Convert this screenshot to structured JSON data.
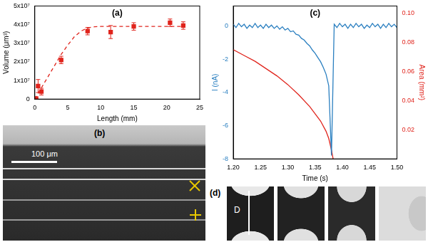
{
  "chart_data": [
    {
      "type": "scatter",
      "title": "(a)",
      "x_label": "Length (mm)",
      "y_label": "Volume (μm³)",
      "xlim": [
        0,
        25
      ],
      "xticks": [
        0,
        5,
        10,
        15,
        20,
        25
      ],
      "ylim": [
        0,
        50000000
      ],
      "yticks": [
        0,
        {
          "value": 10000000,
          "label": "1x10⁷"
        },
        {
          "value": 20000000,
          "label": "2x10⁷"
        },
        {
          "value": 30000000,
          "label": "3x10⁷"
        },
        {
          "value": 40000000,
          "label": "4x10⁷"
        },
        {
          "value": 50000000,
          "label": "5x10⁷"
        }
      ],
      "grid": false,
      "series": [
        {
          "color": "#e0241c",
          "marker": "square",
          "line_style": "none",
          "x": [
            0.2,
            0.5,
            1,
            4,
            8,
            11.5,
            15,
            20.5,
            22.5
          ],
          "values": [
            300000,
            7000000,
            4000000,
            21000000,
            36500000,
            36000000,
            39000000,
            41000000,
            39500000
          ],
          "errors": [
            300000,
            3500000,
            1800000,
            2000000,
            2000000,
            3500000,
            2000000,
            2000000,
            2000000
          ]
        },
        {
          "color": "#e0241c",
          "marker": "none",
          "line_style": "dashed",
          "x": [
            0,
            1,
            2,
            3,
            4,
            5,
            6,
            7,
            8,
            9,
            10,
            12,
            15,
            18,
            20,
            22.5
          ],
          "values": [
            0,
            6000000,
            12000000,
            18000000,
            24000000,
            29000000,
            33500000,
            36500000,
            38200000,
            38800000,
            39000000,
            39000000,
            39000000,
            39000000,
            39000000,
            39000000
          ]
        }
      ]
    },
    {
      "type": "line",
      "title": "(c)",
      "x_label": "Time (s)",
      "y_label": "I (nA)",
      "y2_label": "Area (mm²)",
      "xlim": [
        1.2,
        1.5
      ],
      "xticks": [
        {
          "value": 1.2,
          "label": "1.20"
        },
        1.25,
        {
          "value": 1.3,
          "label": "1.30"
        },
        1.35,
        {
          "value": 1.4,
          "label": "1.40"
        },
        1.45,
        {
          "value": 1.5,
          "label": "1.50"
        }
      ],
      "ylim": [
        -8,
        1.2
      ],
      "yticks": [
        -8,
        -6,
        -4,
        -2,
        0
      ],
      "y2lim": [
        0,
        0.105
      ],
      "y2ticks": [
        0.02,
        0.04,
        0.06,
        0.08,
        {
          "value": 0.1,
          "label": "0.10"
        }
      ],
      "grid": false,
      "series": [
        {
          "color": "#2a7fc0",
          "marker": "none",
          "line_style": "solid",
          "x": [
            1.2,
            1.205,
            1.21,
            1.215,
            1.22,
            1.225,
            1.23,
            1.235,
            1.24,
            1.245,
            1.25,
            1.255,
            1.26,
            1.265,
            1.27,
            1.275,
            1.28,
            1.285,
            1.29,
            1.295,
            1.3,
            1.305,
            1.31,
            1.315,
            1.32,
            1.325,
            1.33,
            1.335,
            1.34,
            1.345,
            1.35,
            1.355,
            1.36,
            1.365,
            1.37,
            1.375,
            1.38,
            1.385,
            1.39,
            1.395,
            1.4,
            1.405,
            1.41,
            1.415,
            1.42,
            1.425,
            1.43,
            1.435,
            1.44,
            1.445,
            1.45,
            1.455,
            1.46,
            1.465,
            1.47,
            1.475,
            1.48,
            1.485,
            1.49,
            1.495,
            1.5
          ],
          "values": [
            0.1,
            -0.1,
            0.15,
            -0.05,
            0.1,
            -0.15,
            0.05,
            -0.1,
            0.15,
            -0.1,
            0.05,
            -0.15,
            0.1,
            -0.1,
            0.05,
            -0.15,
            0.0,
            -0.2,
            -0.05,
            -0.25,
            -0.15,
            -0.35,
            -0.3,
            -0.5,
            -0.55,
            -0.75,
            -0.85,
            -1.05,
            -1.2,
            -1.45,
            -1.65,
            -1.9,
            -2.15,
            -2.5,
            -2.9,
            -3.6,
            -7.8,
            0.1,
            -0.1,
            0.15,
            -0.05,
            0.1,
            -0.15,
            0.1,
            -0.1,
            0.15,
            -0.05,
            0.1,
            -0.15,
            0.05,
            -0.1,
            0.15,
            -0.05,
            0.1,
            -0.15,
            0.1,
            -0.1,
            0.15,
            -0.05,
            0.1,
            -0.1
          ]
        },
        {
          "color": "#e0241c",
          "marker": "none",
          "line_style": "solid",
          "axis": "y2",
          "x": [
            1.2,
            1.22,
            1.24,
            1.26,
            1.28,
            1.3,
            1.32,
            1.34,
            1.36,
            1.37,
            1.375,
            1.38,
            1.383
          ],
          "values": [
            0.075,
            0.071,
            0.067,
            0.062,
            0.057,
            0.051,
            0.044,
            0.036,
            0.026,
            0.019,
            0.014,
            0.006,
            0
          ]
        }
      ]
    }
  ],
  "panels": {
    "b": {
      "label": "(b)",
      "scale_bar": "100 μm"
    },
    "d": {
      "label": "(d)",
      "dimension": "D"
    }
  }
}
